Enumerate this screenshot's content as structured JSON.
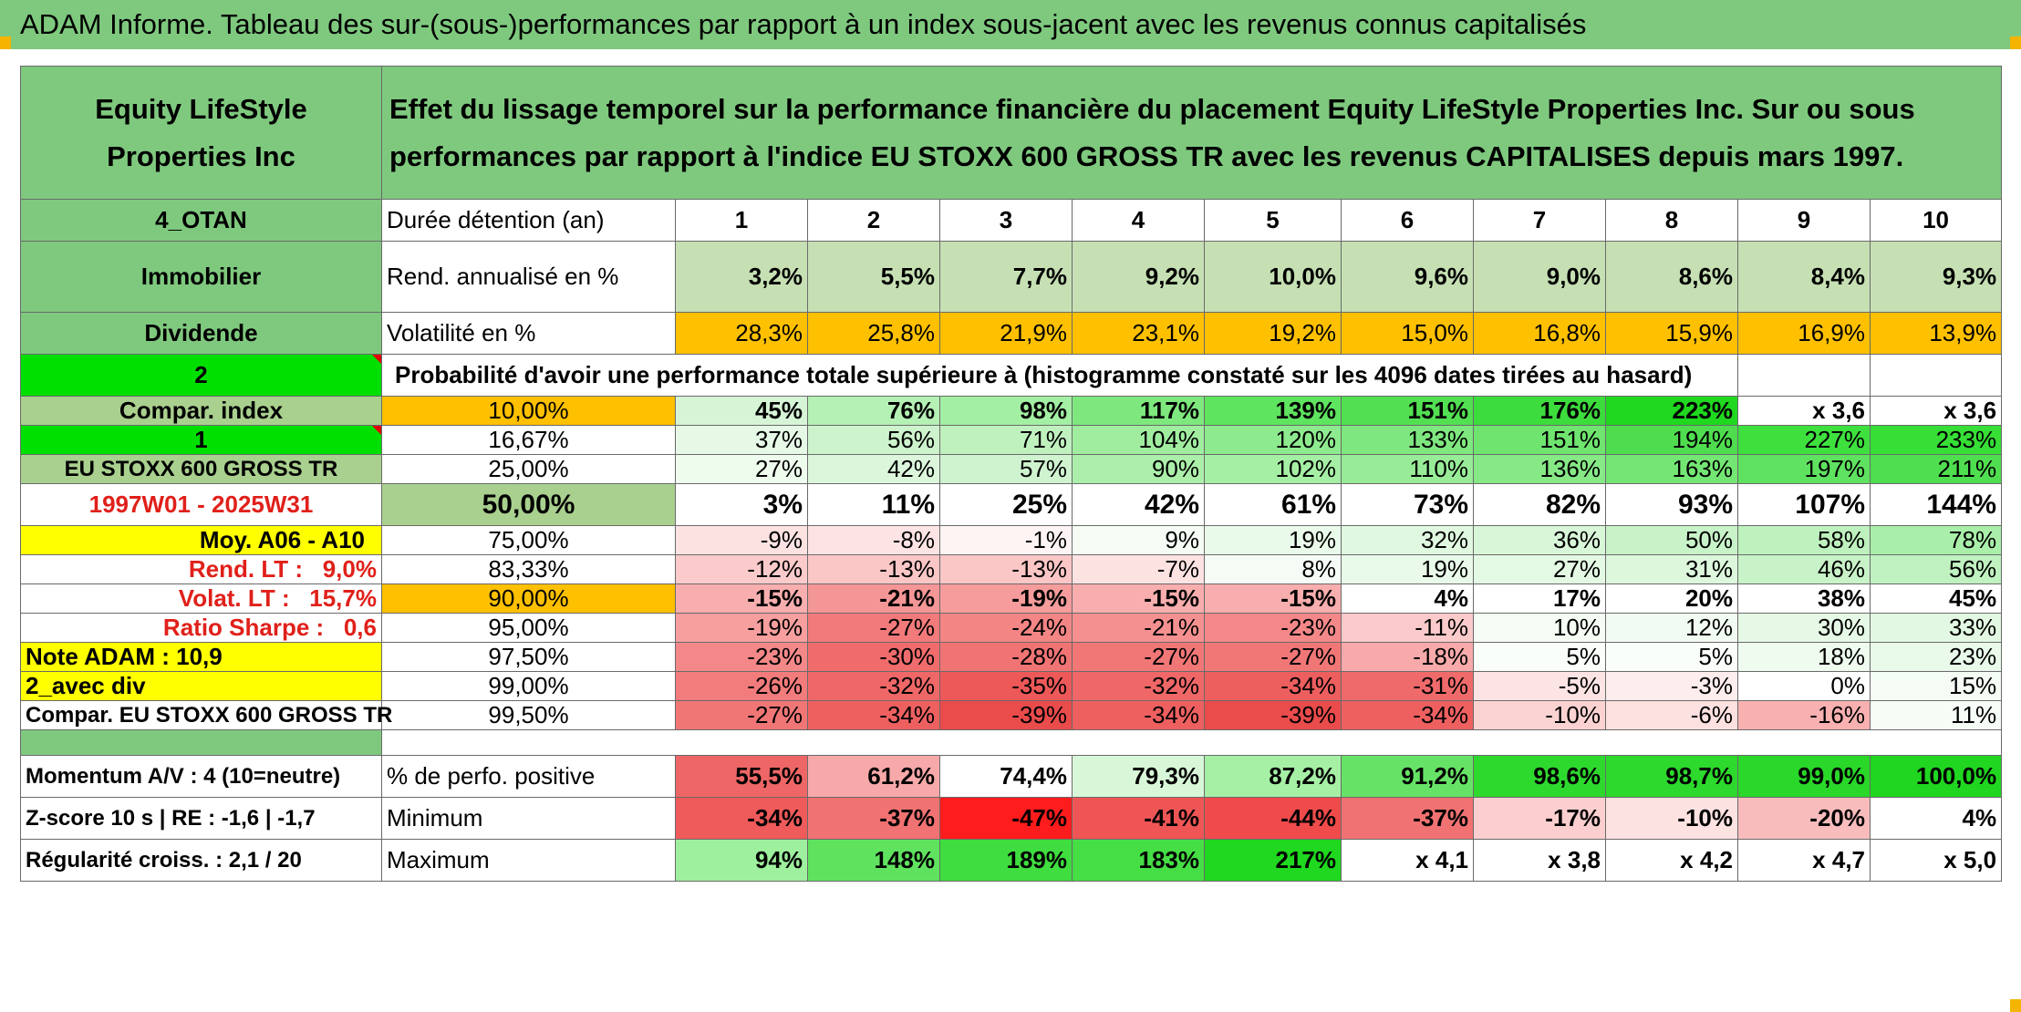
{
  "banner": "ADAM Informe. Tableau des sur-(sous-)performances par rapport à un index sous-jacent avec les revenus connus capitalisés",
  "header": {
    "left": "Equity LifeStyle Properties Inc",
    "title": "Effet du lissage temporel sur la performance financière du placement Equity LifeStyle Properties Inc. Sur ou sous performances par rapport à l'indice EU STOXX 600 GROSS TR avec les revenus CAPITALISES depuis mars 1997."
  },
  "side": {
    "code": "4_OTAN",
    "sector": "Immobilier",
    "dividend": "Dividende",
    "n2": "2",
    "compar_index": "Compar. index",
    "n1": "1",
    "index_name": "EU STOXX 600 GROSS TR",
    "period": "1997W01 - 2025W31",
    "moy": "Moy. A06 - A10",
    "rend_lt": "Rend. LT :   9,0%",
    "volat_lt": "Volat. LT :   15,7%",
    "sharpe": "Ratio Sharpe :   0,6",
    "note": "Note ADAM : 10,9",
    "avec_div": "2_avec div",
    "compar_full": "Compar. EU STOXX 600 GROSS TR",
    "momentum": "Momentum A/V : 4 (10=neutre)",
    "zscore": "Z-score 10 s | RE : -1,6 | -1,7",
    "regularite": "Régularité croiss. : 2,1 / 20"
  },
  "labels": {
    "duree": "Durée détention (an)",
    "rend": "Rend. annualisé en %",
    "volat": "Volatilité en %",
    "proba": "Probabilité d'avoir une performance totale supérieure à (histogramme constaté sur les 4096 dates tirées au hasard)",
    "perfo_pos": "% de perfo. positive",
    "minimum": "Minimum",
    "maximum": "Maximum"
  },
  "years": [
    "1",
    "2",
    "3",
    "4",
    "5",
    "6",
    "7",
    "8",
    "9",
    "10"
  ],
  "rend": [
    "3,2%",
    "5,5%",
    "7,7%",
    "9,2%",
    "10,0%",
    "9,6%",
    "9,0%",
    "8,6%",
    "8,4%",
    "9,3%"
  ],
  "volat": [
    "28,3%",
    "25,8%",
    "21,9%",
    "23,1%",
    "19,2%",
    "15,0%",
    "16,8%",
    "15,9%",
    "16,9%",
    "13,9%"
  ],
  "prob_rows": [
    {
      "p": "10,00%",
      "v": [
        "45%",
        "76%",
        "98%",
        "117%",
        "139%",
        "151%",
        "176%",
        "223%",
        "x 3,6",
        "x 3,6"
      ]
    },
    {
      "p": "16,67%",
      "v": [
        "37%",
        "56%",
        "71%",
        "104%",
        "120%",
        "133%",
        "151%",
        "194%",
        "227%",
        "233%"
      ]
    },
    {
      "p": "25,00%",
      "v": [
        "27%",
        "42%",
        "57%",
        "90%",
        "102%",
        "110%",
        "136%",
        "163%",
        "197%",
        "211%"
      ]
    },
    {
      "p": "50,00%",
      "v": [
        "3%",
        "11%",
        "25%",
        "42%",
        "61%",
        "73%",
        "82%",
        "93%",
        "107%",
        "144%"
      ]
    },
    {
      "p": "75,00%",
      "v": [
        "-9%",
        "-8%",
        "-1%",
        "9%",
        "19%",
        "32%",
        "36%",
        "50%",
        "58%",
        "78%"
      ]
    },
    {
      "p": "83,33%",
      "v": [
        "-12%",
        "-13%",
        "-13%",
        "-7%",
        "8%",
        "19%",
        "27%",
        "31%",
        "46%",
        "56%"
      ]
    },
    {
      "p": "90,00%",
      "v": [
        "-15%",
        "-21%",
        "-19%",
        "-15%",
        "-15%",
        "4%",
        "17%",
        "20%",
        "38%",
        "45%"
      ]
    },
    {
      "p": "95,00%",
      "v": [
        "-19%",
        "-27%",
        "-24%",
        "-21%",
        "-23%",
        "-11%",
        "10%",
        "12%",
        "30%",
        "33%"
      ]
    },
    {
      "p": "97,50%",
      "v": [
        "-23%",
        "-30%",
        "-28%",
        "-27%",
        "-27%",
        "-18%",
        "5%",
        "5%",
        "18%",
        "23%"
      ]
    },
    {
      "p": "99,00%",
      "v": [
        "-26%",
        "-32%",
        "-35%",
        "-32%",
        "-34%",
        "-31%",
        "-5%",
        "-3%",
        "0%",
        "15%"
      ]
    },
    {
      "p": "99,50%",
      "v": [
        "-27%",
        "-34%",
        "-39%",
        "-34%",
        "-39%",
        "-34%",
        "-10%",
        "-6%",
        "-16%",
        "11%"
      ]
    }
  ],
  "perfo_pos": [
    "55,5%",
    "61,2%",
    "74,4%",
    "79,3%",
    "87,2%",
    "91,2%",
    "98,6%",
    "98,7%",
    "99,0%",
    "100,0%"
  ],
  "minimum": [
    "-34%",
    "-37%",
    "-47%",
    "-41%",
    "-44%",
    "-37%",
    "-17%",
    "-10%",
    "-20%",
    "4%"
  ],
  "maximum": [
    "94%",
    "148%",
    "189%",
    "183%",
    "217%",
    "x 4,1",
    "x 3,8",
    "x 4,2",
    "x 4,7",
    "x 5,0"
  ],
  "colors": {
    "banner_green": "#7fc97f",
    "orange": "#ffc000",
    "yellow": "#ffff00",
    "bright_green": "#00e000",
    "red_text": "#e0201a"
  },
  "cell_colors": {
    "prob_rows": [
      [
        "#d6f5d6",
        "#b5f0b5",
        "#a3efa3",
        "#7ee87e",
        "#5fe45f",
        "#52e052",
        "#3ddc3d",
        "#1fd81f",
        "#ffffff",
        "#ffffff"
      ],
      [
        "#e6f9e6",
        "#cdf3cd",
        "#bff1bf",
        "#a0ed9f",
        "#8eea8e",
        "#7fe77f",
        "#6fe46f",
        "#4fdd4f",
        "#3ee03e",
        "#36de36"
      ],
      [
        "#eefcee",
        "#dcf6dc",
        "#cff3cf",
        "#abef ab",
        "#a5ef a5",
        "#98ec98",
        "#86e986",
        "#74e674",
        "#5fe25f",
        "#4fde4f"
      ],
      [
        "#ffffff",
        "#ffffff",
        "#ffffff",
        "#ffffff",
        "#ffffff",
        "#ffffff",
        "#ffffff",
        "#ffffff",
        "#ffffff",
        "#ffffff"
      ],
      [
        "#fde2e2",
        "#fde4e4",
        "#fef4f4",
        "#f4fcf4",
        "#eafaea",
        "#e0f8e0",
        "#d8f6d8",
        "#c8f3c8",
        "#bef1be",
        "#a9eea9"
      ],
      [
        "#fbcaca",
        "#fbc6c6",
        "#fbc6c6",
        "#fde2e2",
        "#f5fcf5",
        "#eafaea",
        "#e4f9e4",
        "#ddf7dd",
        "#c8f3c8",
        "#c0f1c0"
      ],
      [
        "#f8aeae",
        "#f59696",
        "#f69c9c",
        "#f8aeae",
        "#f8aeae",
        "#ffffff",
        "#ffffff",
        "#ffffff",
        "#ffffff",
        "#ffffff"
      ],
      [
        "#f79e9e",
        "#f27a7a",
        "#f38585",
        "#f59090",
        "#f48888",
        "#fbcaca",
        "#f4fcf4",
        "#f2fbf2",
        "#e6f9e6",
        "#e2f8e2"
      ],
      [
        "#f48888",
        "#f06c6c",
        "#f17474",
        "#f17777",
        "#f17777",
        "#f8aaaa",
        "#fafefa",
        "#fafefa",
        "#eefbee",
        "#e9faea"
      ],
      [
        "#f27b7b",
        "#ef6767",
        "#ed5858",
        "#ef6767",
        "#ed5e5e",
        "#ef6a6a",
        "#fde4e4",
        "#fdeded",
        "#ffffff",
        "#f4fcf4"
      ],
      [
        "#f07676",
        "#ee6060",
        "#ea4b4b",
        "#ee6060",
        "#ea4b4b",
        "#ee6060",
        "#fbd2d2",
        "#fde0e0",
        "#f8b0b0",
        "#f6fdf6"
      ]
    ],
    "perfo_pos": [
      "#ee6666",
      "#f7a9a9",
      "#ffffff",
      "#d8f7d8",
      "#a6f0a6",
      "#66e366",
      "#2ed92e",
      "#2cd92c",
      "#29d829",
      "#20d620"
    ],
    "minimum": [
      "#ef5a5a",
      "#f17272",
      "#ff1c1c",
      "#ef5555",
      "#ef4b4b",
      "#f17272",
      "#fbcfcf",
      "#fde2e2",
      "#f9bcbc",
      "#ffffff"
    ],
    "maximum": [
      "#9ef09e",
      "#5fe35f",
      "#3fdd3f",
      "#45de45",
      "#1fd81f",
      "#ffffff",
      "#ffffff",
      "#ffffff",
      "#ffffff",
      "#ffffff"
    ]
  },
  "bold_rows": [
    0,
    3,
    6
  ]
}
